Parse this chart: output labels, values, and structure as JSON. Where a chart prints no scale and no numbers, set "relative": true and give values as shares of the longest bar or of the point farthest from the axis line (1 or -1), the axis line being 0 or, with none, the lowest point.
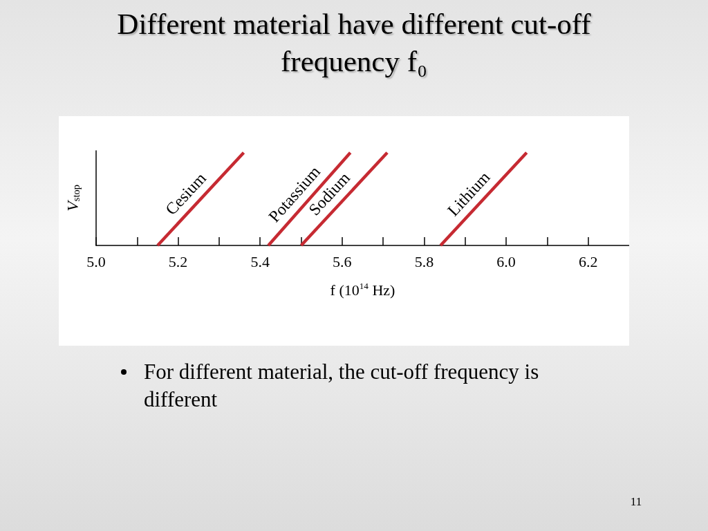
{
  "chart_data": {
    "type": "line",
    "title": "Different material have different cut-off frequency f₀",
    "xlabel": "f (10$^{14}$ Hz)",
    "ylabel": "V$_{stop}$",
    "relative": true,
    "xlim": [
      5.0,
      6.3
    ],
    "xticks": [
      {
        "value": 5.0,
        "label": "5.0"
      },
      {
        "value": 5.1,
        "label": null
      },
      5.2,
      {
        "value": 5.3,
        "label": null
      },
      5.4,
      {
        "value": 5.5,
        "label": null
      },
      5.6,
      {
        "value": 5.7,
        "label": null
      },
      5.8,
      {
        "value": 5.9,
        "label": null
      },
      {
        "value": 6.0,
        "label": "6.0"
      },
      {
        "value": 6.1,
        "label": null
      },
      6.2
    ],
    "tick_labels": "x",
    "grid": false,
    "legend": false,
    "marker": "none",
    "line_style": "solid",
    "series": [
      {
        "name": "Cesium",
        "color": "#c62a32",
        "x": [
          5.15,
          5.36
        ],
        "values": [
          0,
          1
        ]
      },
      {
        "name": "Potassium",
        "color": "#c62a32",
        "x": [
          5.42,
          5.62
        ],
        "values": [
          0,
          1
        ]
      },
      {
        "name": "Sodium",
        "color": "#c62a32",
        "x": [
          5.5,
          5.71
        ],
        "values": [
          0,
          1
        ]
      },
      {
        "name": "Lithium",
        "color": "#c62a32",
        "x": [
          5.84,
          6.05
        ],
        "values": [
          0,
          1
        ]
      }
    ],
    "annotations": [
      "For different material, the cut-off frequency is different",
      "11"
    ]
  }
}
